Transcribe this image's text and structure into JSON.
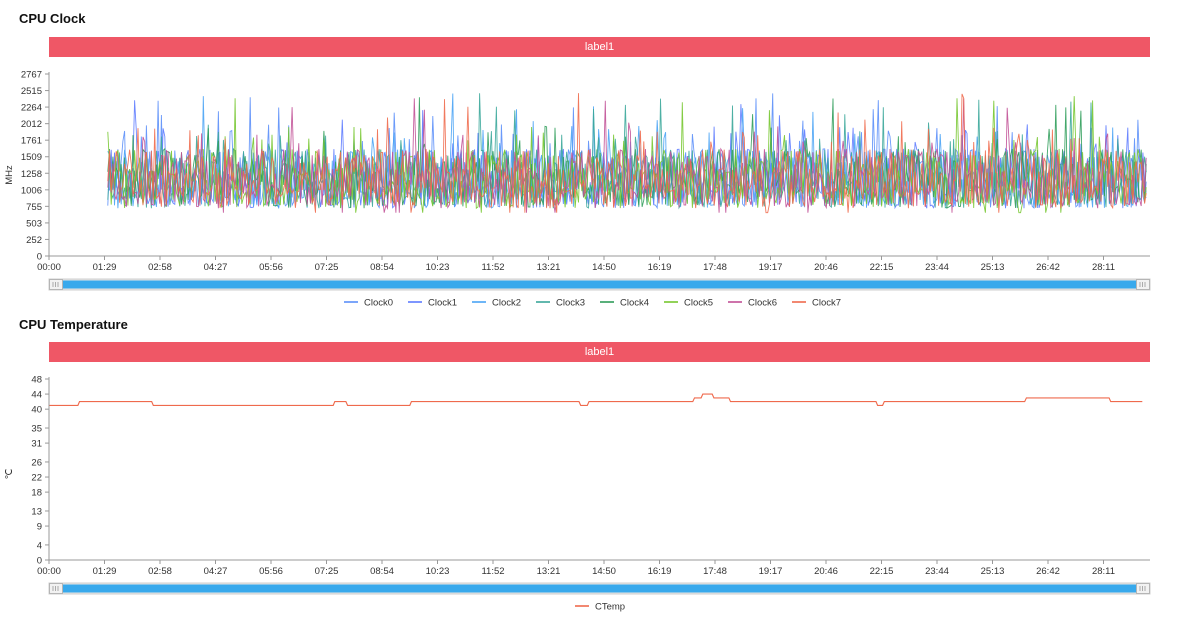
{
  "chart_data": [
    {
      "type": "line",
      "title": "CPU Clock",
      "banner": "label1",
      "ylabel": "MHz",
      "ylim": [
        0,
        2767
      ],
      "yticks": [
        0,
        252,
        503,
        755,
        1006,
        1258,
        1509,
        1761,
        2012,
        2264,
        2515,
        2767
      ],
      "xticks": [
        "00:00",
        "01:29",
        "02:58",
        "04:27",
        "05:56",
        "07:25",
        "08:54",
        "10:23",
        "11:52",
        "13:21",
        "14:50",
        "16:19",
        "17:48",
        "19:17",
        "20:46",
        "22:15",
        "23:44",
        "25:13",
        "26:42",
        "28:11"
      ],
      "x_start_tick": 1.06,
      "x_end_tick": 19.77,
      "value_range": [
        658,
        2515
      ],
      "series": [
        {
          "name": "Clock0",
          "color": "#5b8ff9"
        },
        {
          "name": "Clock1",
          "color": "#5d7bff"
        },
        {
          "name": "Clock2",
          "color": "#49a3f5"
        },
        {
          "name": "Clock3",
          "color": "#3aa79a"
        },
        {
          "name": "Clock4",
          "color": "#2f9d5a"
        },
        {
          "name": "Clock5",
          "color": "#76c72f"
        },
        {
          "name": "Clock6",
          "color": "#c15096"
        },
        {
          "name": "Clock7",
          "color": "#ef6a4d"
        }
      ]
    },
    {
      "type": "line",
      "title": "CPU Temperature",
      "banner": "label1",
      "ylabel": "℃",
      "ylim": [
        0,
        48
      ],
      "yticks": [
        0,
        4,
        9,
        13,
        18,
        22,
        26,
        31,
        35,
        40,
        44,
        48
      ],
      "xticks": [
        "00:00",
        "01:29",
        "02:58",
        "04:27",
        "05:56",
        "07:25",
        "08:54",
        "10:23",
        "11:52",
        "13:21",
        "14:50",
        "16:19",
        "17:48",
        "19:17",
        "20:46",
        "22:15",
        "23:44",
        "25:13",
        "26:42",
        "28:11"
      ],
      "series": [
        {
          "name": "CTemp",
          "color": "#ef6a4d",
          "points": [
            [
              0,
              41
            ],
            [
              0.52,
              41
            ],
            [
              0.55,
              42
            ],
            [
              1.85,
              42
            ],
            [
              1.88,
              41
            ],
            [
              5.12,
              41
            ],
            [
              5.15,
              42
            ],
            [
              5.35,
              42
            ],
            [
              5.38,
              41
            ],
            [
              6.5,
              41
            ],
            [
              6.53,
              42
            ],
            [
              9.55,
              42
            ],
            [
              9.58,
              41
            ],
            [
              9.7,
              41
            ],
            [
              9.73,
              42
            ],
            [
              11.6,
              42
            ],
            [
              11.63,
              43
            ],
            [
              11.75,
              43
            ],
            [
              11.78,
              44
            ],
            [
              11.95,
              44
            ],
            [
              11.98,
              43
            ],
            [
              12.25,
              43
            ],
            [
              12.28,
              42
            ],
            [
              14.9,
              42
            ],
            [
              14.93,
              41
            ],
            [
              15.02,
              41
            ],
            [
              15.05,
              42
            ],
            [
              17.58,
              42
            ],
            [
              17.61,
              43
            ],
            [
              19.1,
              43
            ],
            [
              19.13,
              42
            ],
            [
              19.7,
              42
            ]
          ]
        }
      ]
    }
  ]
}
